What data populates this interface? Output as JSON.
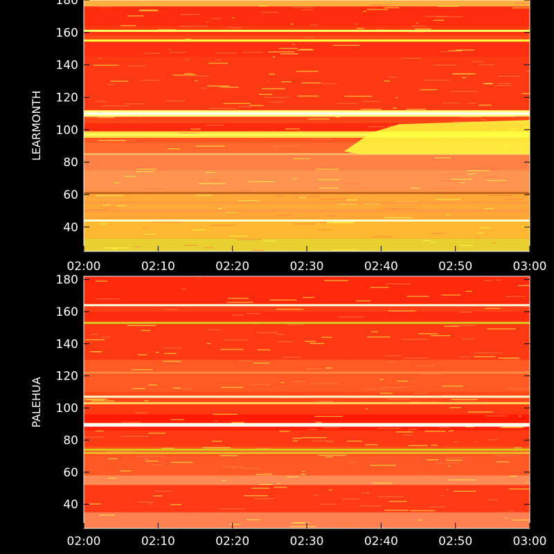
{
  "chart_data": [
    {
      "type": "heatmap",
      "title": "",
      "ylabel": "LEARMONTH",
      "xlabel": "",
      "x_ticks": [
        "02:00",
        "02:10",
        "02:20",
        "02:30",
        "02:40",
        "02:50",
        "03:00"
      ],
      "xlim": [
        "02:00",
        "03:00"
      ],
      "y_ticks": [
        40,
        60,
        80,
        100,
        120,
        140,
        160,
        180
      ],
      "ylim": [
        25,
        180
      ],
      "grid": false,
      "colormap": [
        "#ff0000",
        "#ff5a1e",
        "#ff9a3c",
        "#ffc040",
        "#ffff30",
        "#ffffc0"
      ],
      "bands": [
        {
          "from": 176,
          "to": 180,
          "color": "#ffb040"
        },
        {
          "from": 164,
          "to": 176,
          "color": "#ff2d0d"
        },
        {
          "from": 158,
          "to": 164,
          "color": "#ff3a10"
        },
        {
          "from": 154,
          "to": 158,
          "color": "#ff4a14"
        },
        {
          "from": 145,
          "to": 154,
          "color": "#ff3010"
        },
        {
          "from": 112,
          "to": 145,
          "color": "#ff3a12"
        },
        {
          "from": 108,
          "to": 112,
          "color": "#ffff80"
        },
        {
          "from": 104,
          "to": 108,
          "color": "#ff4416"
        },
        {
          "from": 99,
          "to": 104,
          "color": "#ff2a0c"
        },
        {
          "from": 95,
          "to": 99,
          "color": "#ffe040"
        },
        {
          "from": 92,
          "to": 95,
          "color": "#ff5520"
        },
        {
          "from": 85,
          "to": 92,
          "color": "#ff6a2c"
        },
        {
          "from": 75,
          "to": 85,
          "color": "#ff8045"
        },
        {
          "from": 62,
          "to": 75,
          "color": "#ff9350"
        },
        {
          "from": 45,
          "to": 62,
          "color": "#ffa838"
        },
        {
          "from": 33,
          "to": 45,
          "color": "#ffb830"
        },
        {
          "from": 25,
          "to": 33,
          "color": "#e8d030"
        }
      ],
      "lines": [
        {
          "y": 161,
          "color": "#ffff60"
        },
        {
          "y": 155,
          "color": "#ffff40"
        },
        {
          "y": 110,
          "color": "#ffffff"
        },
        {
          "y": 97,
          "color": "#ffff60"
        },
        {
          "y": 85,
          "color": "#ffb060"
        },
        {
          "y": 61,
          "color": "#c06020"
        },
        {
          "y": 55,
          "color": "#ff9a40"
        },
        {
          "y": 50,
          "color": "#ff9a40"
        },
        {
          "y": 44,
          "color": "#ffffd0"
        }
      ],
      "burst": {
        "x_start": "02:35",
        "x_end": "03:00",
        "y_low": 85,
        "y_high": 106,
        "color": "#ffff40"
      }
    },
    {
      "type": "heatmap",
      "title": "",
      "ylabel": "PALEHUA",
      "xlabel": "",
      "x_ticks": [
        "02:00",
        "02:10",
        "02:20",
        "02:30",
        "02:40",
        "02:50",
        "03:00"
      ],
      "xlim": [
        "02:00",
        "03:00"
      ],
      "y_ticks": [
        40,
        60,
        80,
        100,
        120,
        140,
        160,
        180
      ],
      "ylim": [
        25,
        182
      ],
      "grid": false,
      "colormap": [
        "#ff0000",
        "#ff5a1e",
        "#ff9a3c",
        "#ffc040",
        "#ffff30",
        "#ffffc0"
      ],
      "bands": [
        {
          "from": 165,
          "to": 182,
          "color": "#ff2a0c"
        },
        {
          "from": 160,
          "to": 165,
          "color": "#ff4015"
        },
        {
          "from": 152,
          "to": 160,
          "color": "#ff2d0d"
        },
        {
          "from": 130,
          "to": 152,
          "color": "#ff3a12"
        },
        {
          "from": 110,
          "to": 130,
          "color": "#ff5a22"
        },
        {
          "from": 104,
          "to": 110,
          "color": "#ff4a18"
        },
        {
          "from": 96,
          "to": 104,
          "color": "#ff3a12"
        },
        {
          "from": 92,
          "to": 96,
          "color": "#ff1a05"
        },
        {
          "from": 86,
          "to": 92,
          "color": "#ff2008"
        },
        {
          "from": 76,
          "to": 86,
          "color": "#ff3a12"
        },
        {
          "from": 70,
          "to": 76,
          "color": "#ff5018"
        },
        {
          "from": 58,
          "to": 70,
          "color": "#ff5a25"
        },
        {
          "from": 52,
          "to": 58,
          "color": "#ff8a55"
        },
        {
          "from": 35,
          "to": 52,
          "color": "#ff3a15"
        },
        {
          "from": 25,
          "to": 35,
          "color": "#ff8050"
        }
      ],
      "lines": [
        {
          "y": 164,
          "color": "#ffffe0"
        },
        {
          "y": 153,
          "color": "#d8d020"
        },
        {
          "y": 122,
          "color": "#ff8a40"
        },
        {
          "y": 107,
          "color": "#ffffd0"
        },
        {
          "y": 103,
          "color": "#ffe060"
        },
        {
          "y": 90,
          "color": "#ffffe0"
        },
        {
          "y": 89,
          "color": "#ffffff"
        },
        {
          "y": 74,
          "color": "#d8c820"
        },
        {
          "y": 72,
          "color": "#e8c030"
        }
      ],
      "burst": null
    }
  ]
}
